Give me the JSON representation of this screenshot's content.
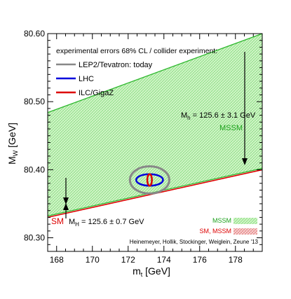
{
  "chart_data": {
    "type": "area",
    "xlabel": "m",
    "xlabel_sub": "t",
    "xlabel_unit": " [GeV]",
    "ylabel": "M",
    "ylabel_sub": "W",
    "ylabel_unit": " [GeV]",
    "xlim": [
      167.5,
      179.5
    ],
    "ylim": [
      80.28,
      80.6
    ],
    "xticks": [
      168,
      170,
      172,
      174,
      176,
      178
    ],
    "xtick_labels": [
      "168",
      "170",
      "172",
      "174",
      "176",
      "178"
    ],
    "yticks": [
      80.3,
      80.4,
      80.5,
      80.6
    ],
    "ytick_labels": [
      "80.30",
      "80.40",
      "80.50",
      "80.60"
    ],
    "mssm_band": {
      "upper": [
        [
          167.5,
          80.484
        ],
        [
          179.5,
          80.6
        ]
      ],
      "lower": [
        [
          167.5,
          80.332
        ],
        [
          179.5,
          80.402
        ]
      ]
    },
    "sm_line": [
      [
        167.5,
        80.33
      ],
      [
        179.5,
        80.4
      ]
    ],
    "ellipses": [
      {
        "name": "LEP2/Tevatron: today",
        "cx": 173.2,
        "cy": 80.385,
        "rx": 1.1,
        "ry": 0.02,
        "color": "#888888"
      },
      {
        "name": "LHC",
        "cx": 173.2,
        "cy": 80.385,
        "rx": 0.75,
        "ry": 0.0085,
        "color": "#0000dd"
      },
      {
        "name": "ILC/GigaZ",
        "cx": 173.2,
        "cy": 80.385,
        "rx": 0.13,
        "ry": 0.0085,
        "color": "#dd0000"
      }
    ],
    "legend_title": "experimental errors 68% CL / collider experiment:",
    "legend": [
      {
        "label": "LEP2/Tevatron: today",
        "color": "#888888"
      },
      {
        "label": "LHC",
        "color": "#0000dd"
      },
      {
        "label": "ILC/GigaZ",
        "color": "#dd0000"
      }
    ],
    "annotations": {
      "mh_mssm": "M",
      "mh_mssm_sub": "h",
      "mh_mssm_val": " = 125.6 ± 3.1 GeV",
      "mssm_label": "MSSM",
      "sm_label": "SM",
      "mH_sm": "M",
      "mH_sm_sub": "H",
      "mH_sm_val": " = 125.6 ± 0.7 GeV"
    },
    "bottom_legend": [
      {
        "label": "MSSM",
        "color": "#00a000"
      },
      {
        "label": "SM, MSSM",
        "color": "#dd0000"
      }
    ],
    "credit": "Heinemeyer, Hollik, Stockinger, Weiglein, Zeune '13",
    "colors": {
      "mssm_green": "#2eb82e",
      "mssm_fill": "#c9f0c0",
      "sm_red": "#dd0000",
      "frame": "#000000"
    }
  }
}
